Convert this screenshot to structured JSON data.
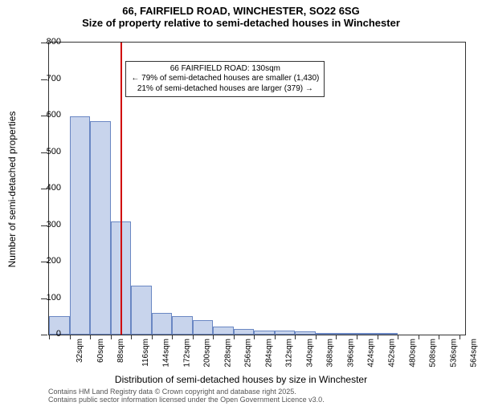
{
  "title_line1": "66, FAIRFIELD ROAD, WINCHESTER, SO22 6SG",
  "title_line2": "Size of property relative to semi-detached houses in Winchester",
  "y_axis_title": "Number of semi-detached properties",
  "x_axis_title": "Distribution of semi-detached houses by size in Winchester",
  "footer_line1": "Contains HM Land Registry data © Crown copyright and database right 2025.",
  "footer_line2": "Contains public sector information licensed under the Open Government Licence v3.0.",
  "annotation_line1": "66 FAIRFIELD ROAD: 130sqm",
  "annotation_line2": "← 79% of semi-detached houses are smaller (1,430)",
  "annotation_line3": "21% of semi-detached houses are larger (379) →",
  "chart": {
    "type": "histogram",
    "ylim": [
      0,
      800
    ],
    "ytick_step": 100,
    "xlim": [
      32,
      600
    ],
    "xtick_step": 28,
    "xtick_start": 32,
    "xtick_count": 21,
    "xunit_suffix": "sqm",
    "bin_width": 28,
    "bar_fill": "#c8d4ec",
    "bar_border": "#6a87c3",
    "marker_color": "#d00000",
    "marker_x": 130,
    "background_color": "#ffffff",
    "axis_color": "#333333",
    "label_fontsize": 11,
    "title_fontsize": 13,
    "bars": [
      {
        "x": 32,
        "count": 50
      },
      {
        "x": 60,
        "count": 598
      },
      {
        "x": 88,
        "count": 585
      },
      {
        "x": 116,
        "count": 310
      },
      {
        "x": 144,
        "count": 135
      },
      {
        "x": 172,
        "count": 60
      },
      {
        "x": 200,
        "count": 50
      },
      {
        "x": 228,
        "count": 40
      },
      {
        "x": 256,
        "count": 22
      },
      {
        "x": 284,
        "count": 15
      },
      {
        "x": 312,
        "count": 12
      },
      {
        "x": 340,
        "count": 10
      },
      {
        "x": 368,
        "count": 8
      },
      {
        "x": 396,
        "count": 2
      },
      {
        "x": 424,
        "count": 2
      },
      {
        "x": 452,
        "count": 2
      },
      {
        "x": 480,
        "count": 2
      },
      {
        "x": 508,
        "count": 0
      },
      {
        "x": 536,
        "count": 0
      },
      {
        "x": 564,
        "count": 0
      }
    ]
  }
}
